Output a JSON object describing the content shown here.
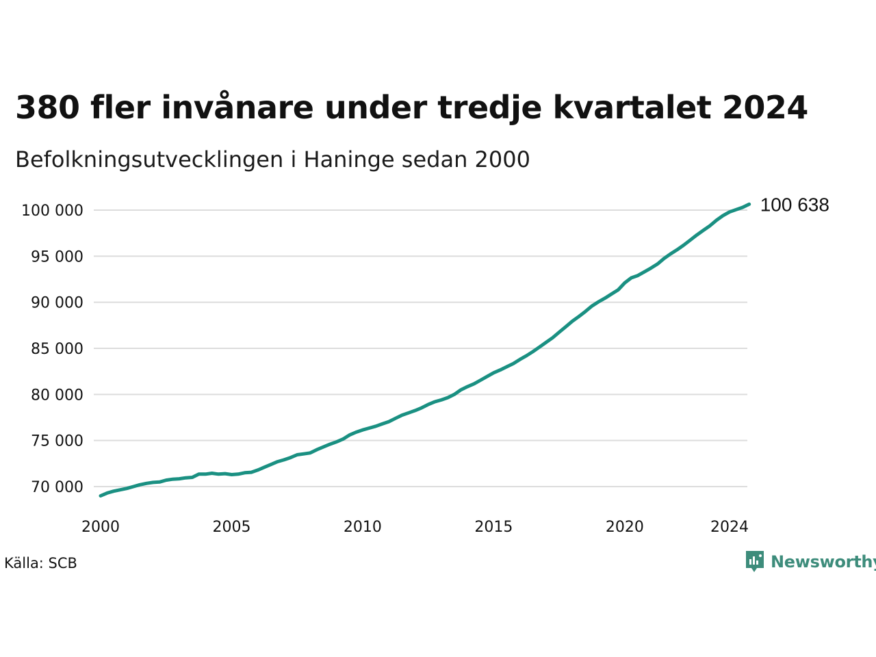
{
  "chart_data": {
    "type": "line",
    "title": "380 fler invånare under tredje kvartalet 2024",
    "subtitle": "Befolkningsutvecklingen i Haninge sedan 2000",
    "xlabel": "",
    "ylabel": "",
    "xlim": [
      2000.0,
      2024.75
    ],
    "ylim": [
      68500,
      101000
    ],
    "y_ticks": [
      {
        "value": 70000,
        "label": "70 000"
      },
      {
        "value": 75000,
        "label": "75 000"
      },
      {
        "value": 80000,
        "label": "80 000"
      },
      {
        "value": 85000,
        "label": "85 000"
      },
      {
        "value": 90000,
        "label": "90 000"
      },
      {
        "value": 95000,
        "label": "95 000"
      },
      {
        "value": 100000,
        "label": "100 000"
      }
    ],
    "x_ticks": [
      {
        "value": 2000,
        "label": "2000"
      },
      {
        "value": 2005,
        "label": "2005"
      },
      {
        "value": 2010,
        "label": "2010"
      },
      {
        "value": 2015,
        "label": "2015"
      },
      {
        "value": 2020,
        "label": "2020"
      },
      {
        "value": 2024,
        "label": "2024"
      }
    ],
    "grid": "horizontal",
    "line_color": "#1a9082",
    "end_label": "100 638",
    "series": [
      {
        "points": [
          [
            2000.0,
            69000
          ],
          [
            2000.25,
            69300
          ],
          [
            2000.5,
            69500
          ],
          [
            2000.75,
            69650
          ],
          [
            2001.0,
            69800
          ],
          [
            2001.25,
            70000
          ],
          [
            2001.5,
            70200
          ],
          [
            2001.75,
            70350
          ],
          [
            2002.0,
            70450
          ],
          [
            2002.25,
            70500
          ],
          [
            2002.5,
            70700
          ],
          [
            2002.75,
            70800
          ],
          [
            2003.0,
            70850
          ],
          [
            2003.25,
            70950
          ],
          [
            2003.5,
            71000
          ],
          [
            2003.75,
            71350
          ],
          [
            2004.0,
            71350
          ],
          [
            2004.25,
            71450
          ],
          [
            2004.5,
            71350
          ],
          [
            2004.75,
            71400
          ],
          [
            2005.0,
            71300
          ],
          [
            2005.25,
            71350
          ],
          [
            2005.5,
            71500
          ],
          [
            2005.75,
            71550
          ],
          [
            2006.0,
            71800
          ],
          [
            2006.25,
            72100
          ],
          [
            2006.5,
            72400
          ],
          [
            2006.75,
            72700
          ],
          [
            2007.0,
            72900
          ],
          [
            2007.25,
            73150
          ],
          [
            2007.5,
            73450
          ],
          [
            2007.75,
            73550
          ],
          [
            2008.0,
            73650
          ],
          [
            2008.25,
            74000
          ],
          [
            2008.5,
            74300
          ],
          [
            2008.75,
            74600
          ],
          [
            2009.0,
            74850
          ],
          [
            2009.25,
            75150
          ],
          [
            2009.5,
            75600
          ],
          [
            2009.75,
            75900
          ],
          [
            2010.0,
            76150
          ],
          [
            2010.25,
            76350
          ],
          [
            2010.5,
            76550
          ],
          [
            2010.75,
            76800
          ],
          [
            2011.0,
            77050
          ],
          [
            2011.25,
            77400
          ],
          [
            2011.5,
            77750
          ],
          [
            2011.75,
            78000
          ],
          [
            2012.0,
            78250
          ],
          [
            2012.25,
            78550
          ],
          [
            2012.5,
            78900
          ],
          [
            2012.75,
            79200
          ],
          [
            2013.0,
            79400
          ],
          [
            2013.25,
            79650
          ],
          [
            2013.5,
            80000
          ],
          [
            2013.75,
            80500
          ],
          [
            2014.0,
            80850
          ],
          [
            2014.25,
            81150
          ],
          [
            2014.5,
            81550
          ],
          [
            2014.75,
            81950
          ],
          [
            2015.0,
            82350
          ],
          [
            2015.25,
            82650
          ],
          [
            2015.5,
            83000
          ],
          [
            2015.75,
            83350
          ],
          [
            2016.0,
            83800
          ],
          [
            2016.25,
            84200
          ],
          [
            2016.5,
            84650
          ],
          [
            2016.75,
            85150
          ],
          [
            2017.0,
            85650
          ],
          [
            2017.25,
            86150
          ],
          [
            2017.5,
            86750
          ],
          [
            2017.75,
            87350
          ],
          [
            2018.0,
            87950
          ],
          [
            2018.25,
            88450
          ],
          [
            2018.5,
            89000
          ],
          [
            2018.75,
            89600
          ],
          [
            2019.0,
            90050
          ],
          [
            2019.25,
            90450
          ],
          [
            2019.5,
            90900
          ],
          [
            2019.75,
            91350
          ],
          [
            2020.0,
            92100
          ],
          [
            2020.25,
            92650
          ],
          [
            2020.5,
            92900
          ],
          [
            2020.75,
            93300
          ],
          [
            2021.0,
            93700
          ],
          [
            2021.25,
            94150
          ],
          [
            2021.5,
            94750
          ],
          [
            2021.75,
            95250
          ],
          [
            2022.0,
            95700
          ],
          [
            2022.25,
            96200
          ],
          [
            2022.5,
            96750
          ],
          [
            2022.75,
            97300
          ],
          [
            2023.0,
            97800
          ],
          [
            2023.25,
            98300
          ],
          [
            2023.5,
            98900
          ],
          [
            2023.75,
            99400
          ],
          [
            2024.0,
            99800
          ],
          [
            2024.25,
            100050
          ],
          [
            2024.5,
            100300
          ],
          [
            2024.75,
            100638
          ]
        ]
      }
    ]
  },
  "footer": {
    "source": "Källa: SCB",
    "brand": "Newsworthy",
    "brand_color": "#3d8c7b",
    "brand_icon": "newsworthy-logo-icon"
  }
}
